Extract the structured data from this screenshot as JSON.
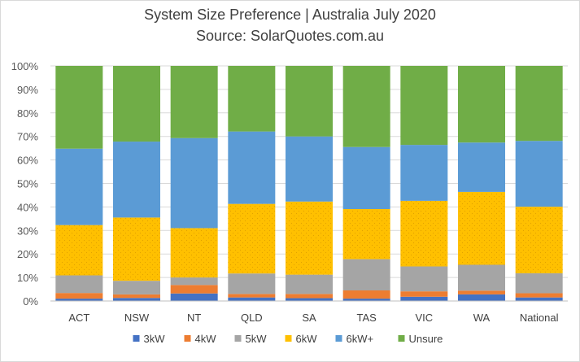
{
  "chart_data": {
    "type": "bar",
    "stacked": true,
    "title": "System Size Preference  | Australia July 2020",
    "subtitle": "Source: SolarQuotes.com.au",
    "xlabel": "",
    "ylabel": "",
    "ylim": [
      0,
      100
    ],
    "y_tick_labels": [
      "0%",
      "10%",
      "20%",
      "30%",
      "40%",
      "50%",
      "60%",
      "70%",
      "80%",
      "90%",
      "100%"
    ],
    "grid": "horizontal",
    "legend_position": "bottom",
    "categories": [
      "ACT",
      "NSW",
      "NT",
      "QLD",
      "SA",
      "TAS",
      "VIC",
      "WA",
      "National"
    ],
    "series": [
      {
        "name": "3kW",
        "color": "#4472c4",
        "values": [
          1.0,
          1.3,
          3.2,
          1.5,
          1.2,
          1.0,
          1.8,
          2.8,
          1.5
        ]
      },
      {
        "name": "4kW",
        "color": "#ed7d31",
        "values": [
          2.4,
          1.5,
          3.6,
          1.5,
          1.8,
          3.5,
          2.3,
          1.6,
          1.8
        ]
      },
      {
        "name": "5kW",
        "color": "#a5a5a5",
        "values": [
          7.5,
          5.8,
          3.2,
          8.7,
          8.2,
          13.3,
          10.6,
          11.0,
          8.5
        ]
      },
      {
        "name": "6kW",
        "color": "#ffc000",
        "values": [
          21.4,
          26.9,
          21.0,
          29.6,
          31.1,
          21.3,
          27.9,
          31.0,
          28.3
        ]
      },
      {
        "name": "6kW+",
        "color": "#5b9bd5",
        "values": [
          32.5,
          32.3,
          38.3,
          30.8,
          27.7,
          26.4,
          23.8,
          21.0,
          28.0
        ]
      },
      {
        "name": "Unsure",
        "color": "#70ad47",
        "values": [
          35.2,
          32.2,
          30.7,
          27.9,
          30.0,
          34.5,
          33.6,
          32.6,
          31.9
        ]
      }
    ]
  }
}
